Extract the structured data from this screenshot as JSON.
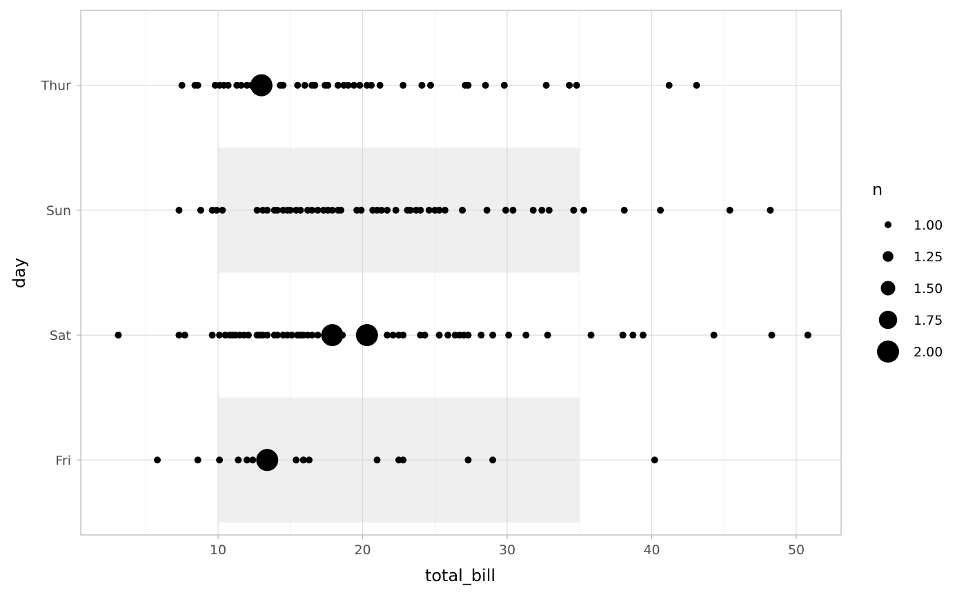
{
  "chart_data": {
    "type": "scatter",
    "title": "",
    "xlabel": "total_bill",
    "ylabel": "day",
    "xlim": [
      0.5,
      53.1
    ],
    "x_ticks": [
      10,
      20,
      30,
      40,
      50
    ],
    "x_minor_ticks": [
      5,
      15,
      25,
      35,
      45
    ],
    "categories": [
      "Fri",
      "Sat",
      "Sun",
      "Thur"
    ],
    "grid": true,
    "shaded_bands": [
      {
        "category": "Sun",
        "x_range": [
          10,
          35
        ],
        "color": "#ebebeb"
      },
      {
        "category": "Fri",
        "x_range": [
          10,
          35
        ],
        "color": "#ebebeb"
      }
    ],
    "legend": {
      "title": "n",
      "position": "right",
      "entries": [
        {
          "label": "1.00",
          "n": 1.0
        },
        {
          "label": "1.25",
          "n": 1.25
        },
        {
          "label": "1.50",
          "n": 1.5
        },
        {
          "label": "1.75",
          "n": 1.75
        },
        {
          "label": "2.00",
          "n": 2.0
        }
      ]
    },
    "series": [
      {
        "day": "Thur",
        "points": [
          [
            7.5,
            1
          ],
          [
            8.4,
            1
          ],
          [
            8.6,
            1
          ],
          [
            9.8,
            1
          ],
          [
            10.1,
            1
          ],
          [
            10.4,
            1
          ],
          [
            10.7,
            1
          ],
          [
            11.3,
            1
          ],
          [
            11.6,
            1
          ],
          [
            12.0,
            1
          ],
          [
            12.3,
            1
          ],
          [
            12.7,
            1
          ],
          [
            13.0,
            2
          ],
          [
            14.3,
            1
          ],
          [
            14.5,
            1
          ],
          [
            15.5,
            1
          ],
          [
            16.0,
            1
          ],
          [
            16.5,
            1
          ],
          [
            16.7,
            1
          ],
          [
            17.4,
            1
          ],
          [
            17.6,
            1
          ],
          [
            18.3,
            1
          ],
          [
            18.7,
            1
          ],
          [
            19.0,
            1
          ],
          [
            19.4,
            1
          ],
          [
            19.8,
            1
          ],
          [
            20.3,
            1
          ],
          [
            20.6,
            1
          ],
          [
            21.2,
            1
          ],
          [
            22.8,
            1
          ],
          [
            24.1,
            1
          ],
          [
            24.7,
            1
          ],
          [
            27.1,
            1
          ],
          [
            27.3,
            1
          ],
          [
            28.5,
            1
          ],
          [
            29.8,
            1
          ],
          [
            32.7,
            1
          ],
          [
            34.3,
            1
          ],
          [
            34.8,
            1
          ],
          [
            41.2,
            1
          ],
          [
            43.1,
            1
          ]
        ]
      },
      {
        "day": "Sun",
        "points": [
          [
            7.3,
            1
          ],
          [
            8.8,
            1
          ],
          [
            9.6,
            1
          ],
          [
            9.9,
            1
          ],
          [
            10.3,
            1
          ],
          [
            12.7,
            1
          ],
          [
            13.1,
            1
          ],
          [
            13.4,
            1
          ],
          [
            13.9,
            1
          ],
          [
            14.1,
            1
          ],
          [
            14.5,
            1
          ],
          [
            14.8,
            1
          ],
          [
            15.0,
            1
          ],
          [
            15.4,
            1
          ],
          [
            15.7,
            1
          ],
          [
            16.2,
            1
          ],
          [
            16.5,
            1
          ],
          [
            16.9,
            1
          ],
          [
            17.3,
            1
          ],
          [
            17.6,
            1
          ],
          [
            17.9,
            1
          ],
          [
            18.3,
            1
          ],
          [
            18.5,
            1
          ],
          [
            19.6,
            1
          ],
          [
            19.9,
            1
          ],
          [
            20.7,
            1
          ],
          [
            21.0,
            1
          ],
          [
            21.3,
            1
          ],
          [
            21.7,
            1
          ],
          [
            22.3,
            1
          ],
          [
            23.1,
            1
          ],
          [
            23.3,
            1
          ],
          [
            23.7,
            1
          ],
          [
            24.0,
            1
          ],
          [
            24.6,
            1
          ],
          [
            25.0,
            1
          ],
          [
            25.3,
            1
          ],
          [
            25.7,
            1
          ],
          [
            26.9,
            1
          ],
          [
            28.6,
            1
          ],
          [
            29.9,
            1
          ],
          [
            30.4,
            1
          ],
          [
            31.8,
            1
          ],
          [
            32.4,
            1
          ],
          [
            32.9,
            1
          ],
          [
            34.6,
            1
          ],
          [
            35.3,
            1
          ],
          [
            38.1,
            1
          ],
          [
            40.6,
            1
          ],
          [
            45.4,
            1
          ],
          [
            48.2,
            1
          ]
        ]
      },
      {
        "day": "Sat",
        "points": [
          [
            3.1,
            1
          ],
          [
            7.3,
            1
          ],
          [
            7.7,
            1
          ],
          [
            9.6,
            1
          ],
          [
            10.1,
            1
          ],
          [
            10.5,
            1
          ],
          [
            10.8,
            1
          ],
          [
            11.0,
            1
          ],
          [
            11.2,
            1
          ],
          [
            11.5,
            1
          ],
          [
            11.8,
            1
          ],
          [
            12.1,
            1
          ],
          [
            12.7,
            1
          ],
          [
            12.9,
            1
          ],
          [
            13.1,
            1
          ],
          [
            13.4,
            1
          ],
          [
            13.9,
            1
          ],
          [
            14.1,
            1
          ],
          [
            14.5,
            1
          ],
          [
            14.8,
            1
          ],
          [
            15.1,
            1
          ],
          [
            15.5,
            1
          ],
          [
            15.7,
            1
          ],
          [
            15.9,
            1
          ],
          [
            16.2,
            1
          ],
          [
            16.5,
            1
          ],
          [
            16.9,
            1
          ],
          [
            17.9,
            2
          ],
          [
            18.6,
            1
          ],
          [
            20.3,
            2
          ],
          [
            21.7,
            1
          ],
          [
            22.1,
            1
          ],
          [
            22.5,
            1
          ],
          [
            22.8,
            1
          ],
          [
            24.0,
            1
          ],
          [
            24.3,
            1
          ],
          [
            25.3,
            1
          ],
          [
            25.9,
            1
          ],
          [
            26.4,
            1
          ],
          [
            26.7,
            1
          ],
          [
            27.0,
            1
          ],
          [
            27.3,
            1
          ],
          [
            28.2,
            1
          ],
          [
            29.0,
            1
          ],
          [
            30.1,
            1
          ],
          [
            31.3,
            1
          ],
          [
            32.8,
            1
          ],
          [
            35.8,
            1
          ],
          [
            38.0,
            1
          ],
          [
            38.7,
            1
          ],
          [
            39.4,
            1
          ],
          [
            44.3,
            1
          ],
          [
            48.3,
            1
          ],
          [
            50.8,
            1
          ]
        ]
      },
      {
        "day": "Fri",
        "points": [
          [
            5.8,
            1
          ],
          [
            8.6,
            1
          ],
          [
            10.1,
            1
          ],
          [
            11.4,
            1
          ],
          [
            12.0,
            1
          ],
          [
            12.4,
            1
          ],
          [
            13.4,
            2
          ],
          [
            15.4,
            1
          ],
          [
            15.9,
            1
          ],
          [
            16.3,
            1
          ],
          [
            21.0,
            1
          ],
          [
            22.5,
            1
          ],
          [
            22.8,
            1
          ],
          [
            27.3,
            1
          ],
          [
            29.0,
            1
          ],
          [
            40.2,
            1
          ]
        ]
      }
    ]
  }
}
